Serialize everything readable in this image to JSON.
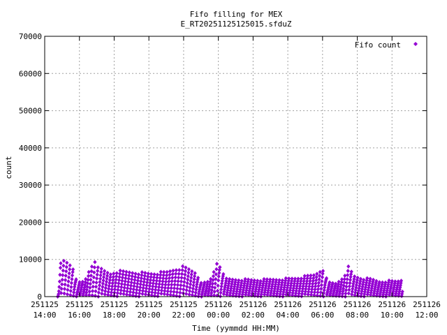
{
  "chart_data": {
    "type": "scatter",
    "title_line1": "Fifo filling for MEX",
    "title_line2": "E_RT20251125125015.sfduZ",
    "xlabel": "Time (yymmdd HH:MM)",
    "ylabel": "count",
    "x_range_hours": [
      14,
      36
    ],
    "ylim": [
      0,
      70000
    ],
    "y_ticks": [
      0,
      10000,
      20000,
      30000,
      40000,
      50000,
      60000,
      70000
    ],
    "y_tick_labels": [
      "0",
      "10000",
      "20000",
      "30000",
      "40000",
      "50000",
      "60000",
      "70000"
    ],
    "x_ticks": [
      {
        "date": "251125",
        "time": "14:00",
        "hour": 14
      },
      {
        "date": "251125",
        "time": "16:00",
        "hour": 16
      },
      {
        "date": "251125",
        "time": "18:00",
        "hour": 18
      },
      {
        "date": "251125",
        "time": "20:00",
        "hour": 20
      },
      {
        "date": "251125",
        "time": "22:00",
        "hour": 22
      },
      {
        "date": "251126",
        "time": "00:00",
        "hour": 24
      },
      {
        "date": "251126",
        "time": "02:00",
        "hour": 26
      },
      {
        "date": "251126",
        "time": "04:00",
        "hour": 28
      },
      {
        "date": "251126",
        "time": "06:00",
        "hour": 30
      },
      {
        "date": "251126",
        "time": "08:00",
        "hour": 32
      },
      {
        "date": "251126",
        "time": "10:00",
        "hour": 34
      },
      {
        "date": "251126",
        "time": "12:00",
        "hour": 36
      }
    ],
    "grid": true,
    "legend_position": "top-right",
    "series": [
      {
        "name": "Fifo count",
        "color": "#9400d3",
        "marker": "diamond",
        "time_range": [
          "251125 14:44",
          "251126 10:35"
        ],
        "peak_envelope": {
          "x_hours": [
            14.75,
            14.9,
            15.1,
            15.3,
            15.6,
            15.9,
            16.3,
            16.6,
            16.9,
            17.2,
            17.5,
            17.8,
            18.1,
            18.5,
            19.0,
            19.5,
            20.0,
            20.5,
            21.0,
            21.5,
            22.0,
            22.3,
            22.7,
            23.0,
            23.3,
            23.6,
            23.85,
            24.0,
            24.15,
            24.4,
            24.8,
            25.5,
            26.0,
            26.5,
            27.0,
            27.5,
            28.0,
            28.5,
            29.0,
            29.5,
            29.8,
            30.0,
            30.3,
            30.8,
            31.2,
            31.5,
            31.8,
            32.3,
            32.8,
            33.3,
            33.8,
            34.3,
            34.6
          ],
          "y": [
            0,
            9000,
            10000,
            9600,
            8600,
            3800,
            4200,
            7800,
            10400,
            7800,
            7000,
            6400,
            7100,
            7000,
            6900,
            6700,
            6500,
            6600,
            6800,
            7800,
            8300,
            7700,
            6800,
            4200,
            3700,
            5200,
            8800,
            11000,
            7500,
            5000,
            4900,
            4800,
            4700,
            4700,
            4800,
            4900,
            5000,
            5200,
            5600,
            6100,
            7000,
            8200,
            4000,
            3700,
            5600,
            8400,
            5800,
            5100,
            4900,
            4200,
            4400,
            4300,
            4800
          ]
        },
        "floor_count": 0
      }
    ]
  }
}
